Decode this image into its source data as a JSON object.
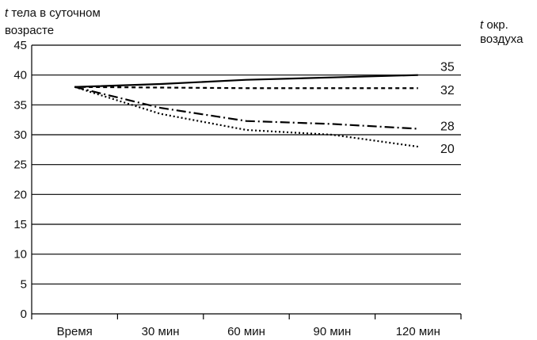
{
  "chart_data": {
    "type": "line",
    "ylabel": {
      "symbol": "t",
      "line1": " тела в суточном",
      "line2": "возрасте"
    },
    "legend_title": {
      "symbol": "t",
      "line1": " окр.",
      "line2": "воздуха"
    },
    "categories": [
      "Время",
      "30 мин",
      "60 мин",
      "90 мин",
      "120 мин"
    ],
    "ylim": [
      0,
      45
    ],
    "yticks": [
      "0",
      "5",
      "10",
      "15",
      "20",
      "25",
      "30",
      "35",
      "40",
      "45"
    ],
    "grid": true,
    "series": [
      {
        "name": "35",
        "values": [
          38,
          38.5,
          39.2,
          39.6,
          40
        ],
        "dash": ""
      },
      {
        "name": "32",
        "values": [
          38,
          37.9,
          37.8,
          37.8,
          37.8
        ],
        "dash": "5,4"
      },
      {
        "name": "28",
        "values": [
          38,
          34.5,
          32.3,
          31.8,
          31
        ],
        "dash": "12,4,2,4"
      },
      {
        "name": "20",
        "values": [
          38,
          33.5,
          30.8,
          30,
          28
        ],
        "dash": "2,3"
      }
    ]
  }
}
